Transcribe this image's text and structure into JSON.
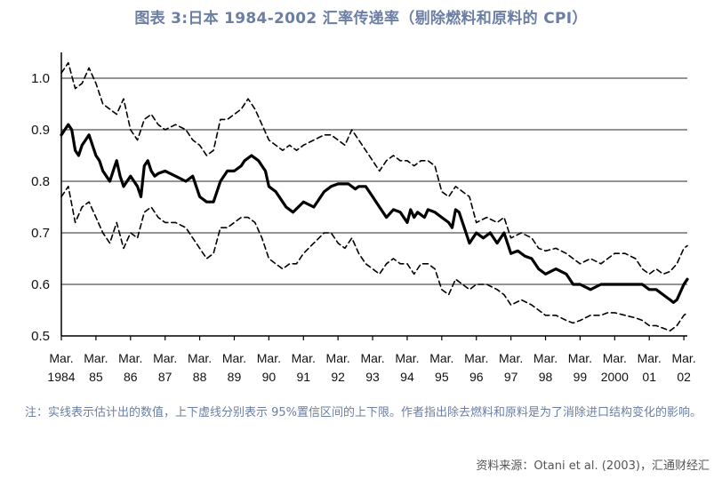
{
  "title": "图表 3:日本 1984-2002 汇率传递率（剔除燃料和原料的 CPI）",
  "note": "注：实线表示估计出的数值，上下虚线分别表示 95%置信区间的上下限。作者指出除去燃料和原料是为了消除进口结构变化的影响。",
  "source": "资料来源：Otani et al. (2003)，汇通财经汇",
  "colors": {
    "title": "#6b7ea3",
    "line": "#000000",
    "grid": "#555555"
  },
  "chart_data": {
    "type": "line",
    "title": "图表 3:日本 1984-2002 汇率传递率（剔除燃料和原料的 CPI）",
    "xlabel": "",
    "ylabel": "",
    "xlim": [
      1984.0,
      2002.1
    ],
    "ylim": [
      0.5,
      1.05
    ],
    "grid": "horizontal",
    "y_ticks": [
      "1.0",
      "0.9",
      "0.8",
      "0.7",
      "0.6",
      "0.5"
    ],
    "y_tick_values": [
      1.0,
      0.9,
      0.8,
      0.7,
      0.6,
      0.5
    ],
    "x_tick_values": [
      1984,
      1985,
      1986,
      1987,
      1988,
      1989,
      1990,
      1991,
      1992,
      1993,
      1994,
      1995,
      1996,
      1997,
      1998,
      1999,
      2000,
      2001,
      2002
    ],
    "x_ticks": [
      {
        "top": "Mar.",
        "bottom": "1984"
      },
      {
        "top": "Mar.",
        "bottom": "85"
      },
      {
        "top": "Mar.",
        "bottom": "86"
      },
      {
        "top": "Mar.",
        "bottom": "87"
      },
      {
        "top": "Mar.",
        "bottom": "88"
      },
      {
        "top": "Mar.",
        "bottom": "89"
      },
      {
        "top": "Mar.",
        "bottom": "90"
      },
      {
        "top": "Mar.",
        "bottom": "91"
      },
      {
        "top": "Mar.",
        "bottom": "92"
      },
      {
        "top": "Mar.",
        "bottom": "93"
      },
      {
        "top": "Mar.",
        "bottom": "94"
      },
      {
        "top": "Mar.",
        "bottom": "95"
      },
      {
        "top": "Mar.",
        "bottom": "96"
      },
      {
        "top": "Mar.",
        "bottom": "97"
      },
      {
        "top": "Mar.",
        "bottom": "98"
      },
      {
        "top": "Mar.",
        "bottom": "99"
      },
      {
        "top": "Mar.",
        "bottom": "2000"
      },
      {
        "top": "Mar.",
        "bottom": "01"
      },
      {
        "top": "Mar.",
        "bottom": "02"
      }
    ],
    "series": [
      {
        "style": "solid",
        "x": [
          1984.0,
          1984.1,
          1984.2,
          1984.3,
          1984.4,
          1984.5,
          1984.6,
          1984.7,
          1984.8,
          1984.9,
          1985.0,
          1985.1,
          1985.2,
          1985.3,
          1985.4,
          1985.5,
          1985.6,
          1985.7,
          1985.8,
          1985.9,
          1986.0,
          1986.1,
          1986.2,
          1986.3,
          1986.4,
          1986.5,
          1986.6,
          1986.7,
          1986.8,
          1987.0,
          1987.3,
          1987.6,
          1987.8,
          1988.0,
          1988.2,
          1988.4,
          1988.6,
          1988.8,
          1989.0,
          1989.2,
          1989.3,
          1989.5,
          1989.7,
          1989.9,
          1990.0,
          1990.2,
          1990.4,
          1990.5,
          1990.7,
          1991.0,
          1991.3,
          1991.6,
          1991.8,
          1992.0,
          1992.2,
          1992.3,
          1992.5,
          1992.6,
          1992.8,
          1993.0,
          1993.2,
          1993.4,
          1993.6,
          1993.8,
          1994.0,
          1994.1,
          1994.2,
          1994.3,
          1994.5,
          1994.6,
          1994.8,
          1995.0,
          1995.2,
          1995.3,
          1995.4,
          1995.5,
          1995.6,
          1995.8,
          1996.0,
          1996.2,
          1996.4,
          1996.6,
          1996.8,
          1997.0,
          1997.2,
          1997.4,
          1997.6,
          1997.8,
          1998.0,
          1998.3,
          1998.6,
          1998.8,
          1999.0,
          1999.3,
          1999.6,
          1999.8,
          2000.0,
          2000.3,
          2000.6,
          2000.8,
          2001.0,
          2001.2,
          2001.4,
          2001.6,
          2001.7,
          2001.8,
          2002.0,
          2002.1
        ],
        "y": [
          0.89,
          0.9,
          0.91,
          0.9,
          0.86,
          0.85,
          0.87,
          0.88,
          0.89,
          0.87,
          0.85,
          0.84,
          0.82,
          0.81,
          0.8,
          0.82,
          0.84,
          0.81,
          0.79,
          0.8,
          0.81,
          0.8,
          0.79,
          0.77,
          0.83,
          0.84,
          0.82,
          0.81,
          0.815,
          0.82,
          0.81,
          0.8,
          0.81,
          0.77,
          0.76,
          0.76,
          0.8,
          0.82,
          0.82,
          0.83,
          0.84,
          0.85,
          0.84,
          0.82,
          0.79,
          0.78,
          0.76,
          0.75,
          0.74,
          0.76,
          0.75,
          0.78,
          0.79,
          0.795,
          0.795,
          0.795,
          0.785,
          0.79,
          0.79,
          0.77,
          0.75,
          0.73,
          0.745,
          0.74,
          0.72,
          0.745,
          0.73,
          0.74,
          0.73,
          0.745,
          0.74,
          0.73,
          0.72,
          0.71,
          0.745,
          0.74,
          0.72,
          0.68,
          0.7,
          0.69,
          0.7,
          0.68,
          0.7,
          0.66,
          0.665,
          0.655,
          0.65,
          0.63,
          0.62,
          0.63,
          0.62,
          0.6,
          0.6,
          0.59,
          0.6,
          0.6,
          0.6,
          0.6,
          0.6,
          0.6,
          0.59,
          0.59,
          0.58,
          0.57,
          0.565,
          0.57,
          0.6,
          0.61
        ]
      },
      {
        "style": "dashed",
        "x": [
          1984.0,
          1984.2,
          1984.4,
          1984.6,
          1984.8,
          1985.0,
          1985.2,
          1985.4,
          1985.6,
          1985.8,
          1986.0,
          1986.2,
          1986.4,
          1986.6,
          1986.8,
          1987.0,
          1987.3,
          1987.6,
          1987.8,
          1988.0,
          1988.2,
          1988.4,
          1988.6,
          1988.8,
          1989.0,
          1989.2,
          1989.4,
          1989.6,
          1989.8,
          1990.0,
          1990.2,
          1990.4,
          1990.6,
          1990.8,
          1991.0,
          1991.3,
          1991.6,
          1991.8,
          1992.0,
          1992.2,
          1992.4,
          1992.6,
          1992.8,
          1993.0,
          1993.2,
          1993.4,
          1993.6,
          1993.8,
          1994.0,
          1994.2,
          1994.4,
          1994.6,
          1994.8,
          1995.0,
          1995.2,
          1995.4,
          1995.6,
          1995.8,
          1996.0,
          1996.3,
          1996.6,
          1996.8,
          1997.0,
          1997.3,
          1997.6,
          1997.8,
          1998.0,
          1998.3,
          1998.6,
          1998.8,
          1999.0,
          1999.3,
          1999.6,
          1999.8,
          2000.0,
          2000.3,
          2000.6,
          2000.8,
          2001.0,
          2001.2,
          2001.4,
          2001.6,
          2001.8,
          2002.0,
          2002.1
        ],
        "y": [
          1.01,
          1.03,
          0.98,
          0.99,
          1.02,
          0.99,
          0.95,
          0.94,
          0.93,
          0.96,
          0.9,
          0.88,
          0.92,
          0.93,
          0.91,
          0.9,
          0.91,
          0.9,
          0.88,
          0.87,
          0.85,
          0.86,
          0.92,
          0.92,
          0.93,
          0.94,
          0.96,
          0.94,
          0.91,
          0.88,
          0.87,
          0.86,
          0.87,
          0.86,
          0.87,
          0.88,
          0.89,
          0.89,
          0.88,
          0.87,
          0.9,
          0.88,
          0.86,
          0.84,
          0.82,
          0.84,
          0.85,
          0.84,
          0.84,
          0.83,
          0.84,
          0.84,
          0.83,
          0.78,
          0.77,
          0.79,
          0.78,
          0.77,
          0.72,
          0.73,
          0.72,
          0.73,
          0.69,
          0.7,
          0.69,
          0.67,
          0.665,
          0.67,
          0.66,
          0.65,
          0.64,
          0.65,
          0.64,
          0.65,
          0.66,
          0.66,
          0.65,
          0.63,
          0.62,
          0.63,
          0.62,
          0.625,
          0.64,
          0.67,
          0.675
        ]
      },
      {
        "style": "dashed",
        "x": [
          1984.0,
          1984.2,
          1984.4,
          1984.6,
          1984.8,
          1985.0,
          1985.2,
          1985.4,
          1985.6,
          1985.8,
          1986.0,
          1986.2,
          1986.4,
          1986.6,
          1986.8,
          1987.0,
          1987.3,
          1987.6,
          1987.8,
          1988.0,
          1988.2,
          1988.4,
          1988.6,
          1988.8,
          1989.0,
          1989.2,
          1989.4,
          1989.6,
          1989.8,
          1990.0,
          1990.2,
          1990.4,
          1990.6,
          1990.8,
          1991.0,
          1991.3,
          1991.6,
          1991.8,
          1992.0,
          1992.2,
          1992.4,
          1992.6,
          1992.8,
          1993.0,
          1993.2,
          1993.4,
          1993.6,
          1993.8,
          1994.0,
          1994.2,
          1994.4,
          1994.6,
          1994.8,
          1995.0,
          1995.2,
          1995.4,
          1995.6,
          1995.8,
          1996.0,
          1996.3,
          1996.6,
          1996.8,
          1997.0,
          1997.3,
          1997.6,
          1997.8,
          1998.0,
          1998.3,
          1998.6,
          1998.8,
          1999.0,
          1999.3,
          1999.6,
          1999.8,
          2000.0,
          2000.3,
          2000.6,
          2000.8,
          2001.0,
          2001.2,
          2001.4,
          2001.6,
          2001.8,
          2002.0,
          2002.1
        ],
        "y": [
          0.77,
          0.79,
          0.72,
          0.75,
          0.76,
          0.73,
          0.7,
          0.68,
          0.72,
          0.67,
          0.7,
          0.69,
          0.74,
          0.75,
          0.73,
          0.72,
          0.72,
          0.71,
          0.69,
          0.67,
          0.65,
          0.66,
          0.71,
          0.71,
          0.72,
          0.73,
          0.73,
          0.72,
          0.69,
          0.65,
          0.64,
          0.63,
          0.64,
          0.64,
          0.66,
          0.68,
          0.7,
          0.7,
          0.68,
          0.67,
          0.69,
          0.66,
          0.64,
          0.63,
          0.62,
          0.64,
          0.65,
          0.64,
          0.64,
          0.62,
          0.64,
          0.64,
          0.63,
          0.59,
          0.58,
          0.61,
          0.6,
          0.59,
          0.6,
          0.6,
          0.59,
          0.58,
          0.56,
          0.57,
          0.56,
          0.55,
          0.54,
          0.54,
          0.53,
          0.525,
          0.53,
          0.54,
          0.54,
          0.545,
          0.545,
          0.54,
          0.535,
          0.53,
          0.52,
          0.52,
          0.515,
          0.51,
          0.52,
          0.54,
          0.545
        ]
      }
    ]
  }
}
